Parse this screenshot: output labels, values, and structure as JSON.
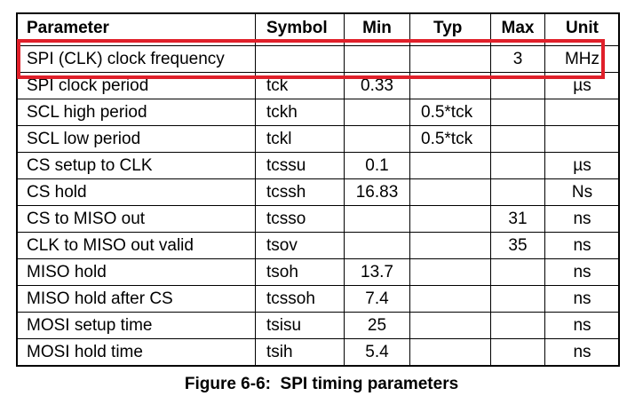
{
  "table": {
    "header": [
      "Parameter",
      "Symbol",
      "Min",
      "Typ",
      "Max",
      "Unit"
    ],
    "rows": [
      [
        "SPI (CLK) clock frequency",
        null,
        null,
        null,
        "3",
        "MHz"
      ],
      [
        "SPI clock period",
        "tck",
        "0.33",
        null,
        null,
        "µs"
      ],
      [
        "SCL high period",
        "tckh",
        null,
        "0.5*tck",
        null,
        null
      ],
      [
        "SCL low period",
        "tckl",
        null,
        "0.5*tck",
        null,
        null
      ],
      [
        "CS setup to CLK",
        "tcssu",
        "0.1",
        null,
        null,
        "µs"
      ],
      [
        "CS hold",
        "tcssh",
        "16.83",
        null,
        null,
        "Ns"
      ],
      [
        "CS to MISO out",
        "tcsso",
        null,
        null,
        "31",
        "ns"
      ],
      [
        "CLK to MISO out valid",
        "tsov",
        null,
        null,
        "35",
        "ns"
      ],
      [
        "MISO hold",
        "tsoh",
        "13.7",
        null,
        null,
        "ns"
      ],
      [
        "MISO hold after CS",
        "tcssoh",
        "7.4",
        null,
        null,
        "ns"
      ],
      [
        "MOSI setup time",
        "tsisu",
        "25",
        null,
        null,
        "ns"
      ],
      [
        "MOSI hold time",
        "tsih",
        "5.4",
        null,
        null,
        "ns"
      ]
    ],
    "caption": "Figure 6-6:  SPI timing parameters"
  }
}
